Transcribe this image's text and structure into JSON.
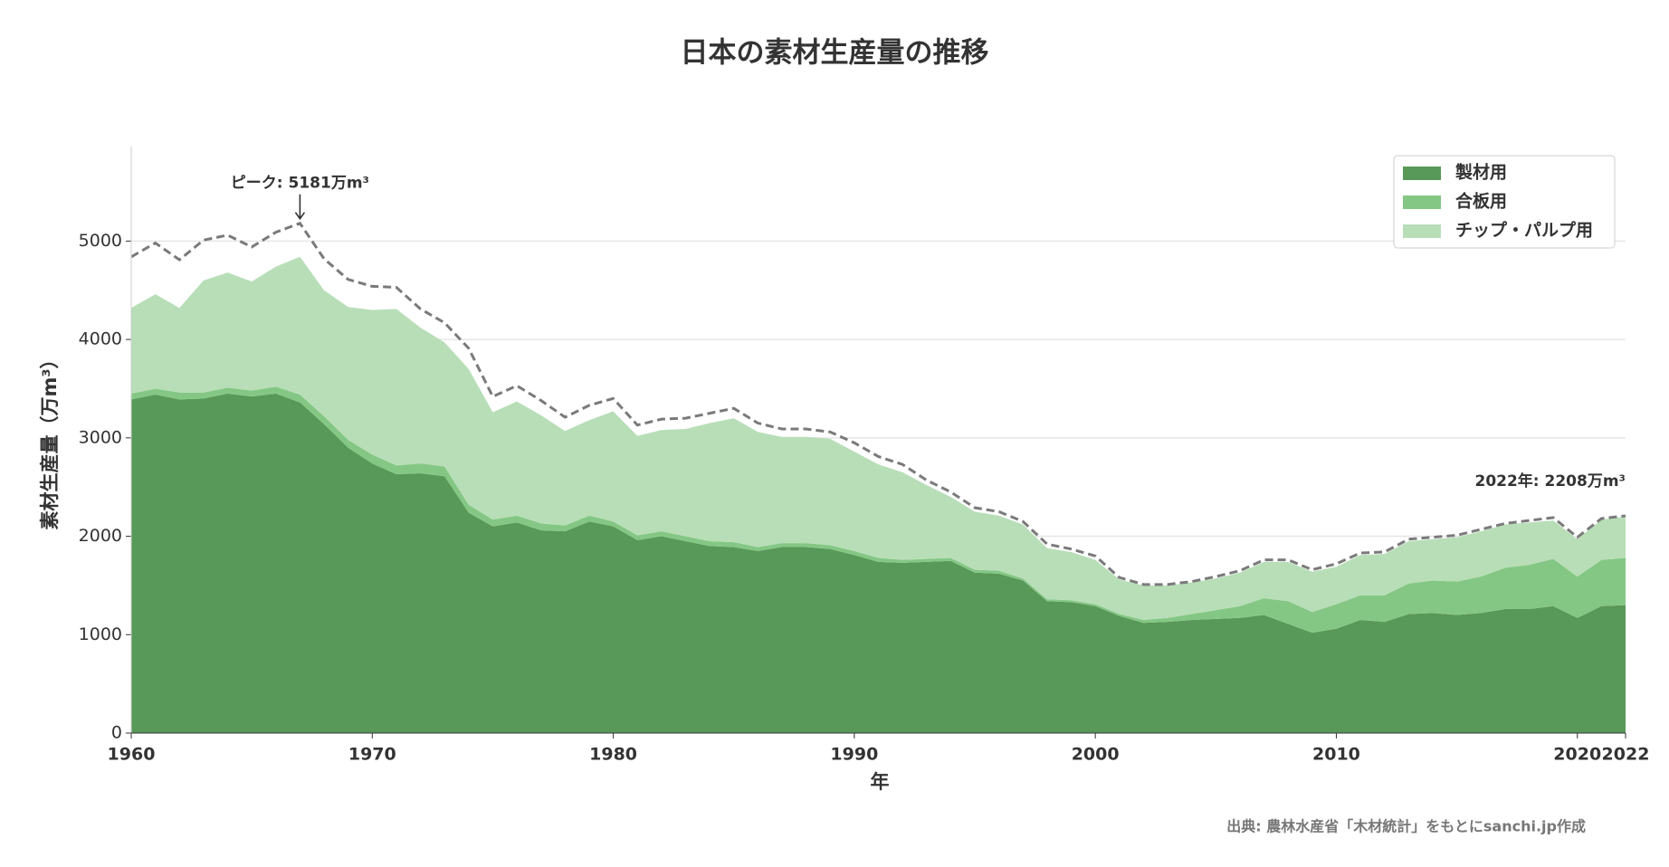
{
  "chart_data": {
    "type": "stacked-area",
    "title": "日本の素材生産量の推移",
    "x_label": "年",
    "y_label": "素材生産量（万m³）",
    "source": "出典: 農林水産省「木材統計」をもとにsanchi.jp作成",
    "x": [
      1960,
      1961,
      1962,
      1963,
      1964,
      1965,
      1966,
      1967,
      1968,
      1969,
      1970,
      1971,
      1972,
      1973,
      1974,
      1975,
      1976,
      1977,
      1978,
      1979,
      1980,
      1981,
      1982,
      1983,
      1984,
      1985,
      1986,
      1987,
      1988,
      1989,
      1990,
      1991,
      1992,
      1993,
      1994,
      1995,
      1996,
      1997,
      1998,
      1999,
      2000,
      2001,
      2002,
      2003,
      2004,
      2005,
      2006,
      2007,
      2008,
      2009,
      2010,
      2011,
      2012,
      2013,
      2014,
      2015,
      2016,
      2017,
      2018,
      2019,
      2020,
      2021,
      2022
    ],
    "series": [
      {
        "name": "製材用",
        "color": "#589858",
        "values": [
          3390,
          3440,
          3390,
          3400,
          3450,
          3420,
          3450,
          3360,
          3140,
          2900,
          2740,
          2630,
          2640,
          2610,
          2240,
          2100,
          2140,
          2060,
          2050,
          2150,
          2100,
          1960,
          2000,
          1950,
          1900,
          1890,
          1850,
          1890,
          1890,
          1870,
          1810,
          1740,
          1730,
          1740,
          1750,
          1630,
          1620,
          1550,
          1340,
          1330,
          1290,
          1190,
          1120,
          1130,
          1150,
          1160,
          1170,
          1200,
          1110,
          1020,
          1060,
          1150,
          1130,
          1210,
          1220,
          1200,
          1220,
          1260,
          1260,
          1290,
          1170,
          1290,
          1300
        ]
      },
      {
        "name": "合板用",
        "color": "#84c784",
        "values": [
          60,
          60,
          70,
          60,
          60,
          60,
          70,
          80,
          80,
          80,
          90,
          90,
          100,
          100,
          80,
          70,
          70,
          70,
          60,
          60,
          50,
          50,
          50,
          50,
          50,
          50,
          40,
          40,
          40,
          40,
          40,
          40,
          30,
          30,
          30,
          30,
          30,
          20,
          20,
          20,
          20,
          20,
          30,
          40,
          60,
          90,
          120,
          170,
          230,
          210,
          250,
          250,
          270,
          310,
          330,
          340,
          370,
          420,
          450,
          480,
          420,
          470,
          480
        ]
      },
      {
        "name": "チップ・パルプ用",
        "color": "#b8deb8",
        "values": [
          870,
          960,
          860,
          1140,
          1170,
          1110,
          1220,
          1400,
          1280,
          1350,
          1470,
          1590,
          1380,
          1260,
          1380,
          1090,
          1160,
          1100,
          960,
          970,
          1120,
          1010,
          1030,
          1090,
          1200,
          1260,
          1170,
          1080,
          1080,
          1080,
          1010,
          950,
          890,
          750,
          620,
          590,
          560,
          550,
          520,
          490,
          450,
          350,
          350,
          330,
          320,
          320,
          340,
          370,
          400,
          410,
          380,
          410,
          420,
          430,
          420,
          450,
          460,
          440,
          430,
          390,
          380,
          410,
          420
        ]
      }
    ],
    "total": {
      "color": "#7a7a7a",
      "dashed": true,
      "values": [
        4840,
        4980,
        4810,
        5010,
        5060,
        4940,
        5090,
        5181,
        4820,
        4610,
        4540,
        4530,
        4310,
        4170,
        3910,
        3420,
        3530,
        3380,
        3210,
        3330,
        3400,
        3130,
        3190,
        3200,
        3250,
        3300,
        3150,
        3090,
        3090,
        3060,
        2950,
        2810,
        2730,
        2570,
        2450,
        2290,
        2250,
        2150,
        1920,
        1870,
        1800,
        1580,
        1510,
        1510,
        1540,
        1590,
        1650,
        1760,
        1760,
        1660,
        1720,
        1830,
        1840,
        1970,
        1990,
        2010,
        2070,
        2130,
        2160,
        2190,
        1990,
        2180,
        2208
      ]
    },
    "annotations": [
      {
        "text": "ピーク: 5181万m³",
        "x": 1967,
        "y": 5181,
        "arrow": true
      },
      {
        "text": "2022年: 2208万m³",
        "x": 2022,
        "y": 2208,
        "arrow": false
      }
    ],
    "xlim": [
      1960,
      2022
    ],
    "xticks": [
      1960,
      1970,
      1980,
      1990,
      2000,
      2010,
      2020,
      2022
    ],
    "ylim": [
      0,
      5960
    ],
    "yticks": [
      0,
      1000,
      2000,
      3000,
      4000,
      5000
    ],
    "grid": true,
    "legend": "upper-right"
  }
}
